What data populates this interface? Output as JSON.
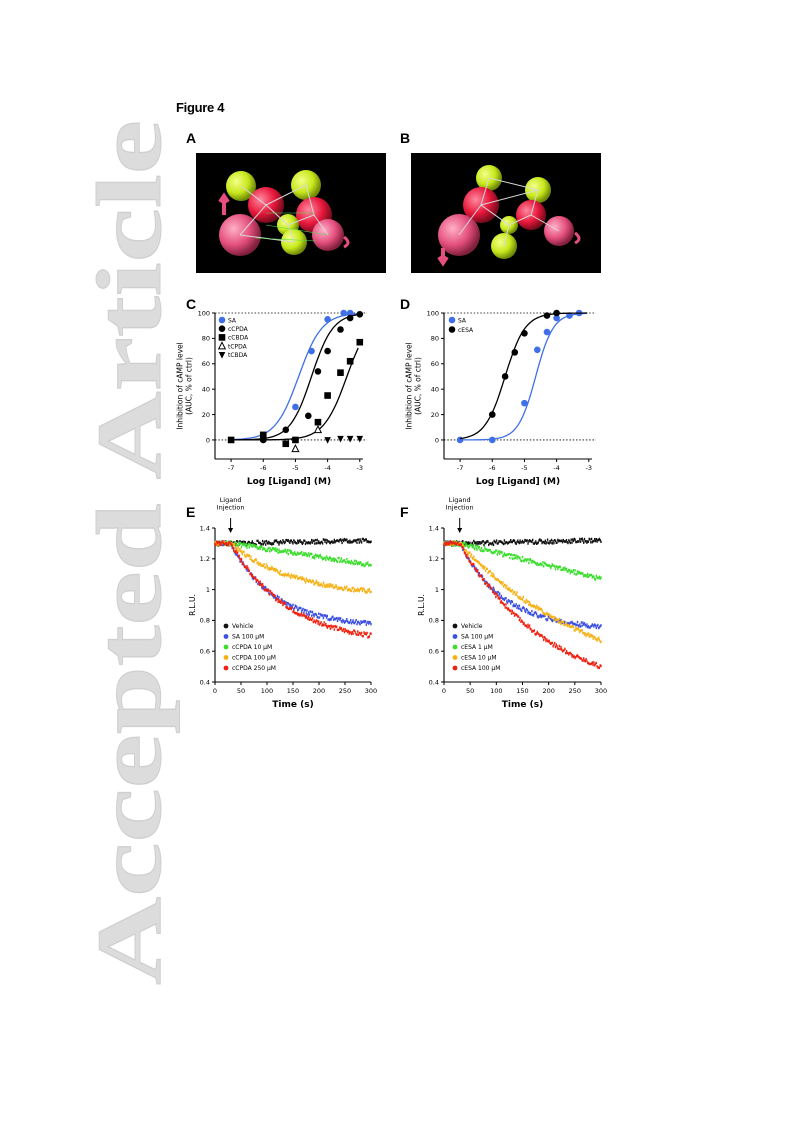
{
  "watermark": "Accepted Article",
  "figure_title": "Figure 4",
  "panels": {
    "A": {
      "label": "A"
    },
    "B": {
      "label": "B"
    },
    "C": {
      "label": "C"
    },
    "D": {
      "label": "D"
    },
    "E": {
      "label": "E"
    },
    "F": {
      "label": "F"
    }
  },
  "chart_data": [
    {
      "panel": "C",
      "type": "line",
      "xlabel": "Log [Ligand] (M)",
      "ylabel": "Inhibition of cAMP level (AUC, % of ctrl)",
      "xlim": [
        -7.5,
        -2.9
      ],
      "ylim": [
        -15,
        100
      ],
      "xticks": [
        -7,
        -6,
        -5,
        -4,
        -3
      ],
      "yticks": [
        0,
        20,
        40,
        60,
        80,
        100
      ],
      "series": [
        {
          "name": "SA",
          "color": "#3f6fe6",
          "marker": "circle",
          "x": [
            -6,
            -5,
            -4.5,
            -4,
            -3.5,
            -3.3
          ],
          "y": [
            0,
            26,
            70,
            95,
            100,
            100
          ],
          "fit_logec50": -4.9,
          "fit_hill": 1.2
        },
        {
          "name": "cCPDA",
          "color": "#000000",
          "marker": "circle",
          "x": [
            -6,
            -5.3,
            -4.6,
            -4.3,
            -4,
            -3.6,
            -3.3,
            -3
          ],
          "y": [
            0,
            8,
            19,
            54,
            70,
            87,
            96,
            99
          ],
          "fit_logec50": -4.5,
          "fit_hill": 1.3
        },
        {
          "name": "cCBDA",
          "color": "#000000",
          "marker": "square",
          "x": [
            -7,
            -6,
            -5.3,
            -5,
            -4.3,
            -4,
            -3.6,
            -3.3,
            -3
          ],
          "y": [
            0,
            4,
            -3,
            0,
            14,
            35,
            53,
            62,
            77
          ],
          "fit_logec50": -3.4,
          "fit_hill": 1.2
        },
        {
          "name": "tCPDA",
          "color": "#000000",
          "marker": "triangle-up-open",
          "x": [
            -5,
            -4.3
          ],
          "y": [
            -7,
            8
          ]
        },
        {
          "name": "tCBDA",
          "color": "#000000",
          "marker": "triangle-down",
          "x": [
            -4,
            -3.6,
            -3.3,
            -3
          ],
          "y": [
            0,
            1,
            1,
            1
          ]
        }
      ]
    },
    {
      "panel": "D",
      "type": "line",
      "xlabel": "Log [Ligand] (M)",
      "ylabel": "Inhibition of cAMP level (AUC, % of ctrl)",
      "xlim": [
        -7.5,
        -2.9
      ],
      "ylim": [
        -15,
        100
      ],
      "xticks": [
        -7,
        -6,
        -5,
        -4,
        -3
      ],
      "yticks": [
        0,
        20,
        40,
        60,
        80,
        100
      ],
      "series": [
        {
          "name": "SA",
          "color": "#3f6fe6",
          "marker": "circle",
          "x": [
            -7,
            -6,
            -5,
            -4.6,
            -4.3,
            -4,
            -3.6,
            -3.3
          ],
          "y": [
            0,
            0,
            29,
            71,
            85,
            96,
            98,
            100
          ],
          "fit_logec50": -4.65,
          "fit_hill": 1.6
        },
        {
          "name": "cESA",
          "color": "#000000",
          "marker": "circle",
          "x": [
            -6,
            -5.6,
            -5.3,
            -5,
            -4.3,
            -4
          ],
          "y": [
            20,
            50,
            69,
            84,
            98,
            100
          ],
          "fit_logec50": -5.6,
          "fit_hill": 1.4
        }
      ]
    },
    {
      "panel": "E",
      "type": "scatter",
      "annotation": "Ligand Injection",
      "injection_time": 30,
      "xlabel": "Time (s)",
      "ylabel": "R.L.U.",
      "xlim": [
        0,
        300
      ],
      "ylim": [
        0.4,
        1.4
      ],
      "xticks": [
        0,
        50,
        100,
        150,
        200,
        250,
        300
      ],
      "yticks": [
        0.4,
        0.6,
        0.8,
        1.0,
        1.2,
        1.4
      ],
      "series": [
        {
          "name": "Vehicle",
          "color": "#111111",
          "start": 1.3,
          "end": 1.32,
          "k": 0
        },
        {
          "name": "SA 100 μM",
          "color": "#3b4fe0",
          "start": 1.3,
          "end": 0.78,
          "k": 3.2
        },
        {
          "name": "cCPDA 10 μM",
          "color": "#3bde2c",
          "start": 1.3,
          "end": 1.16,
          "k": 0
        },
        {
          "name": "cCPDA 100 μM",
          "color": "#f5b014",
          "start": 1.3,
          "end": 0.99,
          "k": 2.2
        },
        {
          "name": "cCPDA 250 μM",
          "color": "#ee2211",
          "start": 1.3,
          "end": 0.7,
          "k": 2.4
        }
      ]
    },
    {
      "panel": "F",
      "type": "scatter",
      "annotation": "Ligand Injection",
      "injection_time": 30,
      "xlabel": "Time (s)",
      "ylabel": "R.L.U.",
      "xlim": [
        0,
        300
      ],
      "ylim": [
        0.4,
        1.4
      ],
      "xticks": [
        0,
        50,
        100,
        150,
        200,
        250,
        300
      ],
      "yticks": [
        0.4,
        0.6,
        0.8,
        1.0,
        1.2,
        1.4
      ],
      "series": [
        {
          "name": "Vehicle",
          "color": "#111111",
          "start": 1.3,
          "end": 1.32,
          "k": 0
        },
        {
          "name": "SA 100 μM",
          "color": "#3b4fe0",
          "start": 1.3,
          "end": 0.76,
          "k": 3.2
        },
        {
          "name": "cESA 1 μM",
          "color": "#3bde2c",
          "start": 1.3,
          "end": 1.07,
          "k": 0
        },
        {
          "name": "cESA 10 μM",
          "color": "#f5b014",
          "start": 1.3,
          "end": 0.67,
          "k": 1.0
        },
        {
          "name": "cESA 100 μM",
          "color": "#ee2211",
          "start": 1.3,
          "end": 0.5,
          "k": 1.6
        }
      ]
    }
  ]
}
